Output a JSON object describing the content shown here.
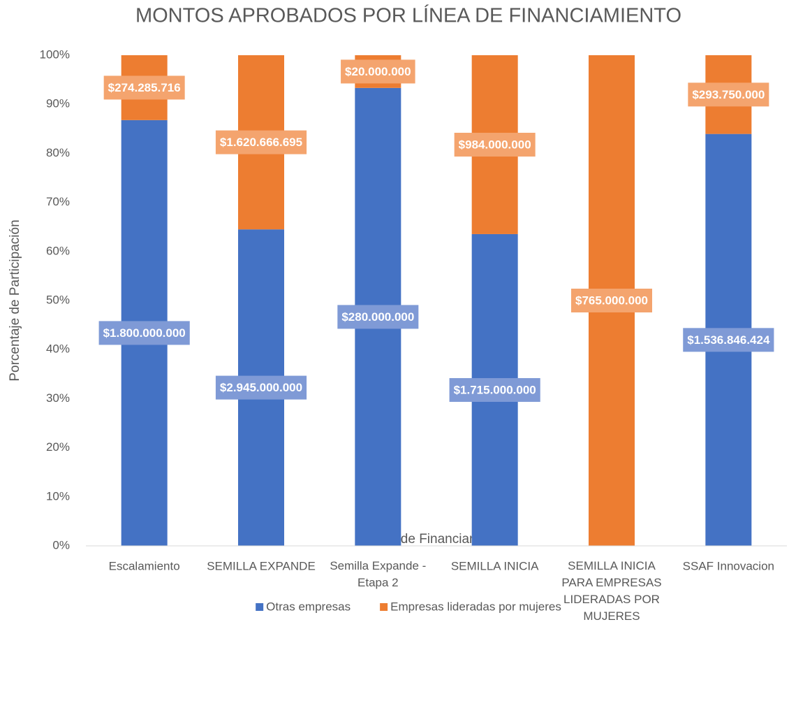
{
  "chart_data": {
    "type": "bar",
    "stacking": "percent",
    "title": "MONTOS APROBADOS POR LÍNEA DE FINANCIAMIENTO",
    "x_label": "Línea de Financiamiento",
    "y_label": "Porcentaje de Participación",
    "categories": [
      "Escalamiento",
      "SEMILLA EXPANDE",
      "Semilla Expande - Etapa 2",
      "SEMILLA INICIA",
      "SEMILLA INICIA PARA EMPRESAS LIDERADAS POR MUJERES",
      "SSAF Innovacion"
    ],
    "series": [
      {
        "name": "Otras empresas",
        "color": "#4472c4",
        "label_color": "#7f9ad6",
        "values": [
          1800000000,
          2945000000,
          280000000,
          1715000000,
          null,
          1536846424
        ],
        "value_labels": [
          "$1.800.000.000",
          "$2.945.000.000",
          "$280.000.000",
          "$1.715.000.000",
          null,
          "$1.536.846.424"
        ]
      },
      {
        "name": "Empresas lideradas por mujeres",
        "color": "#ed7d31",
        "label_color": "#f4a46e",
        "values": [
          274285716,
          1620666695,
          20000000,
          984000000,
          765000000,
          293750000
        ],
        "value_labels": [
          "$274.285.716",
          "$1.620.666.695",
          "$20.000.000",
          "$984.000.000",
          "$765.000.000",
          "$293.750.000"
        ]
      }
    ],
    "ylim": [
      0,
      100
    ],
    "yticks": [
      {
        "value": 0,
        "label": "0%"
      },
      {
        "value": 10,
        "label": "10%"
      },
      {
        "value": 20,
        "label": "20%"
      },
      {
        "value": 30,
        "label": "30%"
      },
      {
        "value": 40,
        "label": "40%"
      },
      {
        "value": 50,
        "label": "50%"
      },
      {
        "value": 60,
        "label": "60%"
      },
      {
        "value": 70,
        "label": "70%"
      },
      {
        "value": 80,
        "label": "80%"
      },
      {
        "value": 90,
        "label": "90%"
      },
      {
        "value": 100,
        "label": "100%"
      }
    ],
    "grid": false,
    "legend": "bottom"
  }
}
